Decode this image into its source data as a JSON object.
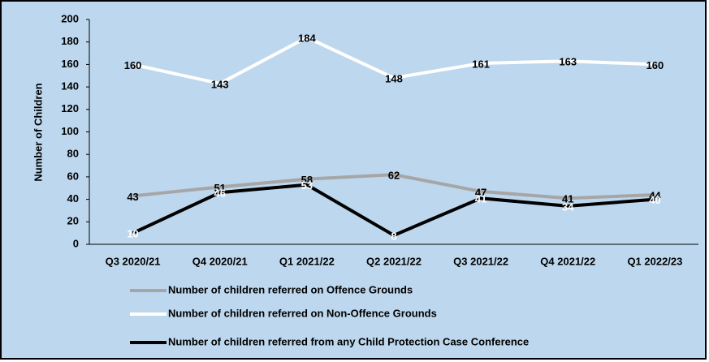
{
  "chart_data": {
    "type": "line",
    "y_label": "Number of Children",
    "categories": [
      "Q3 2020/21",
      "Q4 2020/21",
      "Q1 2021/22",
      "Q2 2021/22",
      "Q3 2021/22",
      "Q4 2021/22",
      "Q1 2022/23"
    ],
    "series": [
      {
        "name": "Number of children referred on Offence Grounds",
        "color": "#a6a6a6",
        "label_color": "#000000",
        "values": [
          43,
          51,
          58,
          62,
          47,
          41,
          44
        ]
      },
      {
        "name": "Number of children referred on Non-Offence Grounds",
        "color": "#ffffff",
        "label_color": "#000000",
        "values": [
          160,
          143,
          184,
          148,
          161,
          163,
          160
        ]
      },
      {
        "name": "Number of children referred from any Child Protection Case Conference",
        "color": "#000000",
        "label_color": "#ffffff",
        "values": [
          10,
          46,
          53,
          8,
          41,
          34,
          40
        ]
      }
    ],
    "ylim": [
      0,
      200
    ],
    "yticks": [
      0,
      20,
      40,
      60,
      80,
      100,
      120,
      140,
      160,
      180,
      200
    ],
    "grid": false,
    "legend": "bottom"
  }
}
